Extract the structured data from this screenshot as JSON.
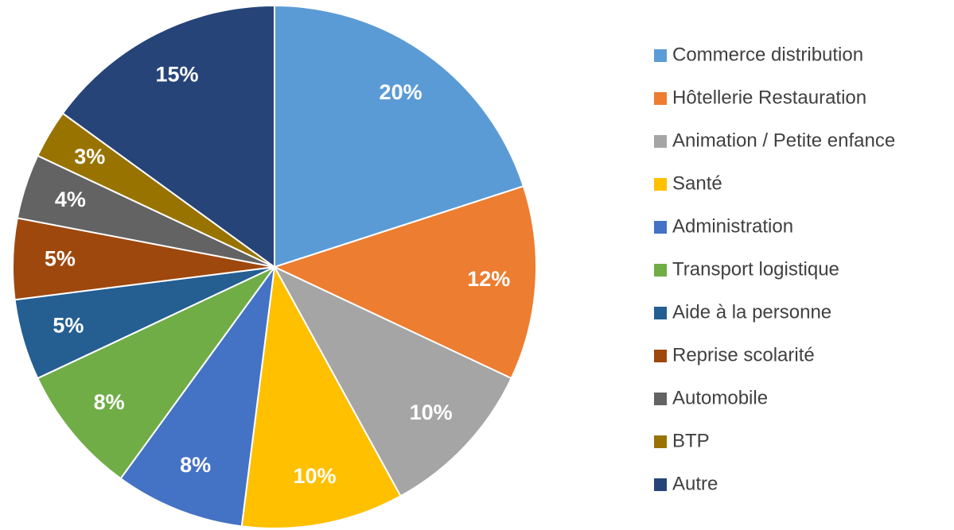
{
  "chart_data": {
    "type": "pie",
    "categories": [
      "Commerce distribution",
      "Hôtellerie Restauration",
      "Animation / Petite enfance",
      "Santé",
      "Administration",
      "Transport logistique",
      "Aide à la personne",
      "Reprise scolarité",
      "Automobile",
      "BTP",
      "Autre"
    ],
    "values": [
      20,
      12,
      10,
      10,
      8,
      8,
      5,
      5,
      4,
      3,
      15
    ],
    "value_labels": [
      "20%",
      "12%",
      "10%",
      "10%",
      "8%",
      "8%",
      "5%",
      "5%",
      "4%",
      "3%",
      "15%"
    ],
    "colors": [
      "#5b9bd5",
      "#ed7d31",
      "#a5a5a5",
      "#ffc000",
      "#4472c4",
      "#70ad47",
      "#255e91",
      "#9e480e",
      "#636363",
      "#997300",
      "#264478"
    ],
    "legend": "right"
  }
}
